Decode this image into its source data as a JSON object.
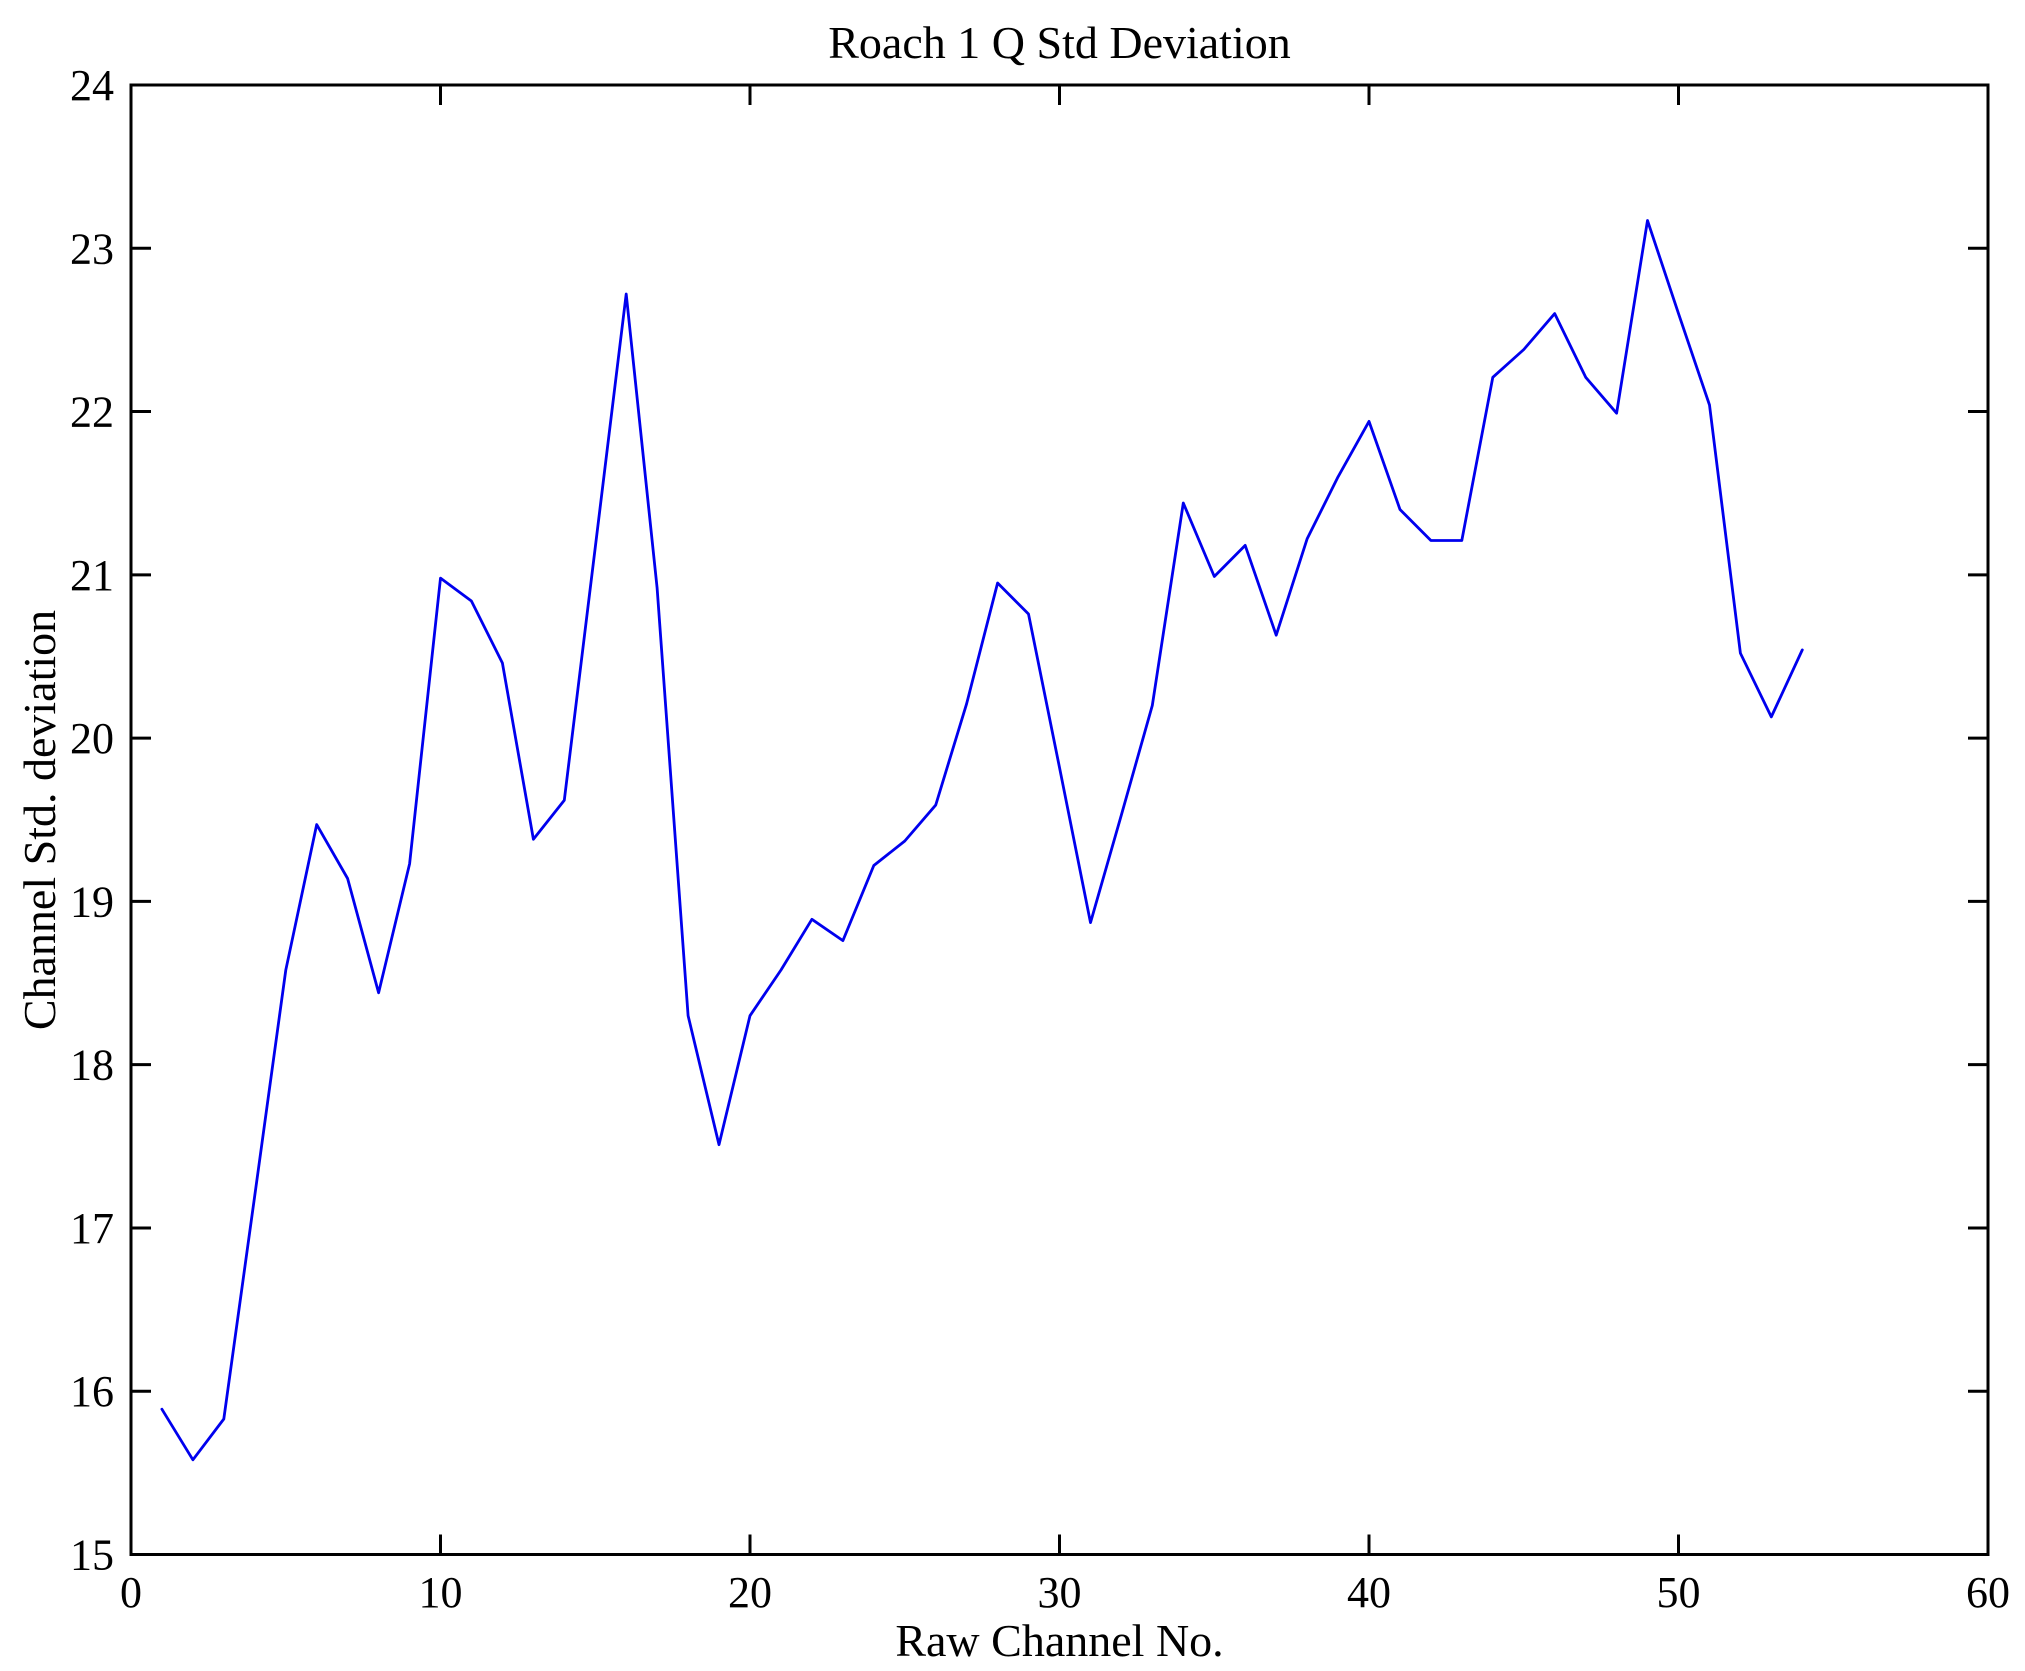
{
  "chart_data": {
    "type": "line",
    "title": "Roach 1 Q Std Deviation",
    "xlabel": "Raw Channel No.",
    "ylabel": "Channel Std. deviation",
    "xlim": [
      0,
      60
    ],
    "ylim": [
      15,
      24
    ],
    "xticks": [
      0,
      10,
      20,
      30,
      40,
      50,
      60
    ],
    "yticks": [
      15,
      16,
      17,
      18,
      19,
      20,
      21,
      22,
      23,
      24
    ],
    "grid": false,
    "legend_position": "none",
    "line_color": "#0000ee",
    "axis_color": "#000000",
    "background_color": "#ffffff",
    "series": [
      {
        "name": "Channel Std. deviation",
        "x": [
          1,
          2,
          3,
          4,
          5,
          6,
          7,
          8,
          9,
          10,
          11,
          12,
          13,
          14,
          15,
          16,
          17,
          18,
          19,
          20,
          21,
          22,
          23,
          24,
          25,
          26,
          27,
          28,
          29,
          30,
          31,
          32,
          33,
          34,
          35,
          36,
          37,
          38,
          39,
          40,
          41,
          42,
          43,
          44,
          45,
          46,
          47,
          48,
          49,
          50,
          51,
          52,
          53,
          54
        ],
        "y": [
          15.89,
          15.58,
          15.83,
          17.2,
          18.58,
          19.47,
          19.14,
          18.44,
          19.23,
          20.98,
          20.84,
          20.46,
          19.38,
          19.62,
          21.17,
          22.72,
          20.92,
          18.3,
          17.51,
          18.3,
          18.58,
          18.89,
          18.76,
          19.22,
          19.37,
          19.59,
          20.21,
          20.95,
          20.76,
          19.82,
          18.87,
          19.53,
          20.2,
          21.44,
          20.99,
          21.18,
          20.63,
          21.22,
          21.6,
          21.94,
          21.4,
          21.21,
          21.21,
          22.21,
          22.38,
          22.6,
          22.21,
          21.99,
          23.17,
          22.6,
          22.04,
          20.52,
          20.13,
          20.54
        ]
      }
    ]
  }
}
